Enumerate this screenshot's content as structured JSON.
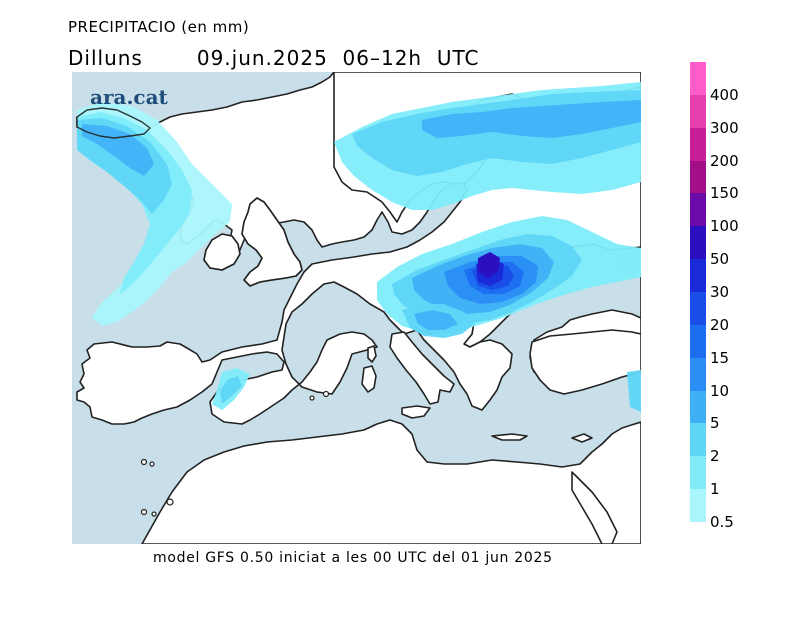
{
  "header": {
    "title": "PRECIPITACIO (en mm)",
    "day": "Dilluns",
    "period": "09.jun.2025  06–12h  UTC"
  },
  "map": {
    "watermark": "ara.cat",
    "colors": {
      "sea": "#c8dfe9",
      "land": "#ffffff",
      "coast": "#222222"
    }
  },
  "footer": {
    "text": "model GFS 0.50 iniciat a les 00 UTC del 01 jun 2025"
  },
  "legend": {
    "unit": "mm",
    "classes": [
      {
        "label": "400",
        "color": "#ff5ccb"
      },
      {
        "label": "300",
        "color": "#e83fb0"
      },
      {
        "label": "200",
        "color": "#c81f98"
      },
      {
        "label": "150",
        "color": "#a30f86"
      },
      {
        "label": "100",
        "color": "#6a0aa8"
      },
      {
        "label": "50",
        "color": "#2a10c0"
      },
      {
        "label": "30",
        "color": "#1a2ad8"
      },
      {
        "label": "20",
        "color": "#1a4ee8"
      },
      {
        "label": "15",
        "color": "#1d6ef0"
      },
      {
        "label": "10",
        "color": "#2a8ef4"
      },
      {
        "label": "5",
        "color": "#3fb0f6"
      },
      {
        "label": "2",
        "color": "#5fd6f8"
      },
      {
        "label": "1",
        "color": "#80ecfa"
      },
      {
        "label": "0.5",
        "color": "#a8f6fc"
      }
    ]
  }
}
